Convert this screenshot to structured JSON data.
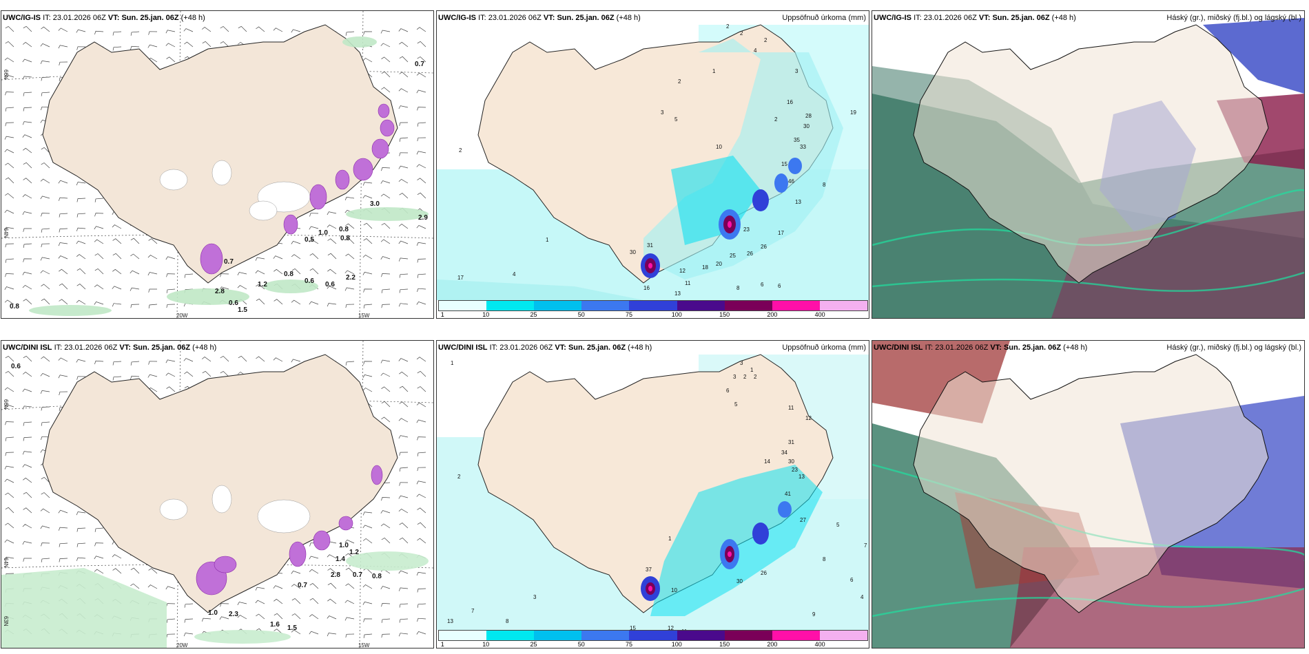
{
  "panels": [
    {
      "model": "UWC/IG-IS",
      "it_label": "IT:",
      "it": "23.01.2026 06Z",
      "vt_label": "VT:",
      "vt": "Sun. 25.jan. 06Z",
      "lead": "(+48 h)",
      "title": ""
    },
    {
      "model": "UWC/IG-IS",
      "it_label": "IT:",
      "it": "23.01.2026 06Z",
      "vt_label": "VT:",
      "vt": "Sun. 25.jan. 06Z",
      "lead": "(+48 h)",
      "title": "Uppsöfnuð úrkoma (mm)"
    },
    {
      "model": "UWC/IG-IS",
      "it_label": "IT:",
      "it": "23.01.2026 06Z",
      "vt_label": "VT:",
      "vt": "Sun. 25.jan. 06Z",
      "lead": "(+48 h)",
      "title": "Háský (gr.), miðský (fj.bl.) og lágský (bl.)"
    },
    {
      "model": "UWC/DINI ISL",
      "it_label": "IT:",
      "it": "23.01.2026 06Z",
      "vt_label": "VT:",
      "vt": "Sun. 25.jan. 06Z",
      "lead": "(+48 h)",
      "title": ""
    },
    {
      "model": "UWC/DINI ISL",
      "it_label": "IT:",
      "it": "23.01.2026 06Z",
      "vt_label": "VT:",
      "vt": "Sun. 25.jan. 06Z",
      "lead": "(+48 h)",
      "title": "Uppsöfnuð úrkoma (mm)"
    },
    {
      "model": "UWC/DINI ISL",
      "it_label": "IT:",
      "it": "23.01.2026 06Z",
      "vt_label": "VT:",
      "vt": "Sun. 25.jan. 06Z",
      "lead": "(+48 h)",
      "title": "Háský (gr.), miðský (fj.bl.) og lágský (bl.)"
    }
  ],
  "axes": {
    "lon_20": "20W",
    "lon_15": "15W",
    "lat_66": "66N",
    "lat_64": "64N",
    "lat_63": "63N"
  },
  "colorbar": {
    "labels": [
      "1",
      "10",
      "25",
      "50",
      "75",
      "100",
      "150",
      "200",
      "400"
    ],
    "colors": [
      "#e8ffff",
      "#00e8f0",
      "#00c0ee",
      "#3c78f0",
      "#3040d8",
      "#4a0a8c",
      "#7a0058",
      "#ff10a8",
      "#f4b0f0"
    ]
  },
  "wind_values_top": [
    "0.7",
    "1.0",
    "0.8",
    "0.8",
    "0.5",
    "1.2",
    "0.7",
    "0.8",
    "0.6",
    "0.6",
    "2.2",
    "2.8",
    "0.6",
    "1.5",
    "0.8",
    "3.0",
    "2.9"
  ],
  "wind_values_bottom": [
    "0.6",
    "1.0",
    "1.2",
    "1.4",
    "0.7",
    "0.8",
    "2.8",
    "0.7",
    "1.6",
    "1.5",
    "2.3",
    "1.0"
  ],
  "precip_top": [
    "2",
    "2",
    "2",
    "4",
    "3",
    "2",
    "1",
    "5",
    "10",
    "3",
    "2",
    "15",
    "16",
    "28",
    "30",
    "33",
    "35",
    "46",
    "13",
    "8",
    "23",
    "17",
    "26",
    "20",
    "18",
    "26",
    "25",
    "12",
    "11",
    "8",
    "6",
    "6",
    "4",
    "17",
    "1",
    "2",
    "31",
    "30",
    "16",
    "13",
    "19"
  ],
  "precip_bottom": [
    "1",
    "3",
    "3",
    "2",
    "2",
    "1",
    "5",
    "6",
    "11",
    "12",
    "31",
    "34",
    "30",
    "23",
    "41",
    "14",
    "13",
    "5",
    "7",
    "8",
    "6",
    "4",
    "9",
    "10",
    "15",
    "12",
    "11",
    "30",
    "26",
    "27",
    "37",
    "7",
    "13",
    "8",
    "3",
    "1",
    "2"
  ]
}
